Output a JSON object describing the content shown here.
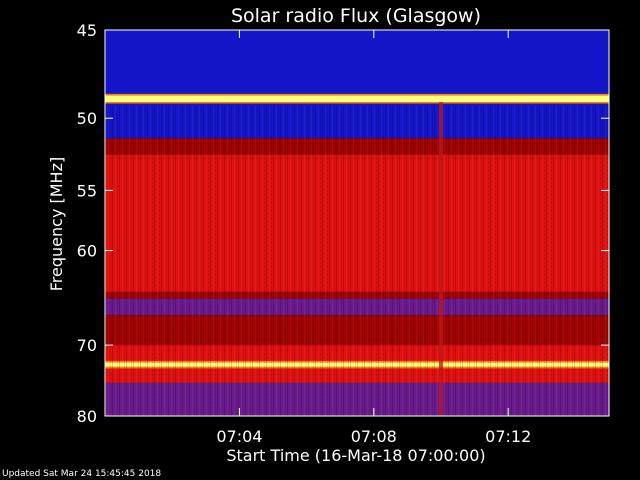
{
  "chart_data": {
    "type": "heatmap",
    "title": "Solar radio Flux (Glasgow)",
    "xlabel": "Start Time (16-Mar-18 07:00:00)",
    "ylabel": "Frequency [MHz]",
    "x_unit": "minutes after 07:00",
    "xlim": [
      0,
      15
    ],
    "x_ticks": [
      {
        "value": 4,
        "label": "07:04"
      },
      {
        "value": 8,
        "label": "07:08"
      },
      {
        "value": 12,
        "label": "07:12"
      }
    ],
    "ylim": [
      45,
      80
    ],
    "y_ticks": [
      {
        "value": 45,
        "label": "45"
      },
      {
        "value": 50,
        "label": "50"
      },
      {
        "value": 55,
        "label": "55"
      },
      {
        "value": 60,
        "label": "60"
      },
      {
        "value": 70,
        "label": "70"
      },
      {
        "value": 80,
        "label": "80"
      }
    ],
    "y_scale": "log",
    "y_inverted": true,
    "colormap": [
      "#1414c8",
      "#6a1a8c",
      "#a00000",
      "#e01010",
      "#ff8000",
      "#ffff80"
    ],
    "frequency_bands": [
      {
        "from": 45,
        "to": 48.6,
        "level": "low"
      },
      {
        "from": 48.6,
        "to": 49.0,
        "level": "very-high"
      },
      {
        "from": 49.0,
        "to": 51.3,
        "level": "low"
      },
      {
        "from": 51.3,
        "to": 52.4,
        "level": "mid"
      },
      {
        "from": 52.4,
        "to": 52.7,
        "level": "high"
      },
      {
        "from": 52.7,
        "to": 64.0,
        "level": "high"
      },
      {
        "from": 64.0,
        "to": 64.7,
        "level": "mid"
      },
      {
        "from": 64.7,
        "to": 66.5,
        "level": "mid-low"
      },
      {
        "from": 66.5,
        "to": 70.0,
        "level": "mid"
      },
      {
        "from": 70.0,
        "to": 72.2,
        "level": "high"
      },
      {
        "from": 72.2,
        "to": 72.8,
        "level": "very-high"
      },
      {
        "from": 72.8,
        "to": 75.0,
        "level": "high"
      },
      {
        "from": 75.0,
        "to": 80.0,
        "level": "mid-low"
      }
    ],
    "vertical_streak": {
      "x": 10.0,
      "from": 49,
      "to": 80
    }
  },
  "footer": "Updated Sat Mar 24 15:45:45 2018"
}
